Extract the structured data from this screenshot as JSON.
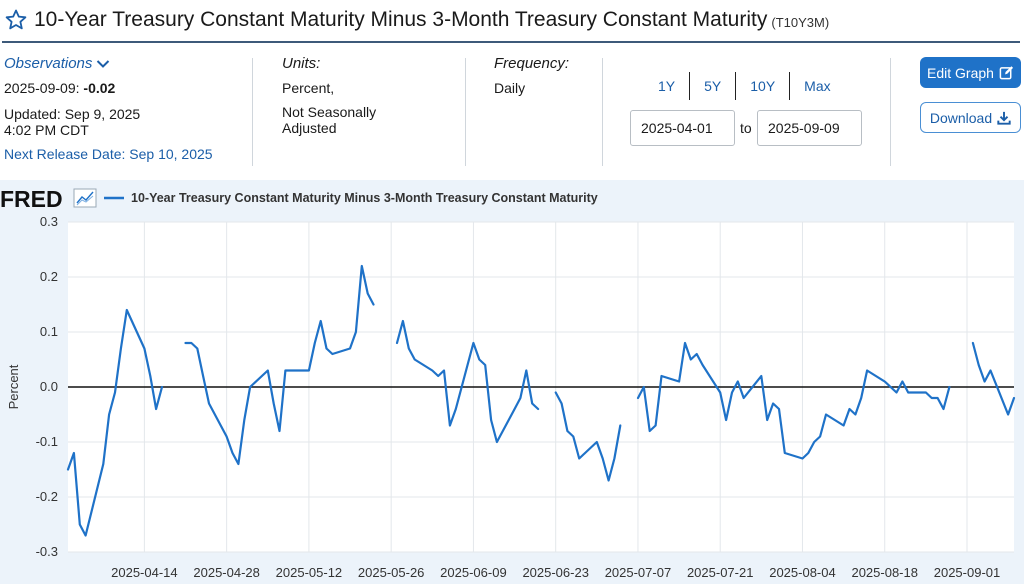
{
  "header": {
    "title": "10-Year Treasury Constant Maturity Minus 3-Month Treasury Constant Maturity",
    "series_code": "(T10Y3M)",
    "star_icon": "star-outline-icon"
  },
  "meta": {
    "observations_label": "Observations",
    "obs_date": "2025-09-09:",
    "obs_value": "-0.02",
    "updated_line1": "Updated: Sep 9, 2025",
    "updated_line2": "4:02 PM CDT",
    "next_release": "Next Release Date: Sep 10, 2025",
    "units_label": "Units:",
    "units_line1": "Percent,",
    "units_line2": "Not Seasonally",
    "units_line3": "Adjusted",
    "frequency_label": "Frequency:",
    "frequency_value": "Daily"
  },
  "controls": {
    "ranges": [
      "1Y",
      "5Y",
      "10Y",
      "Max"
    ],
    "start_date": "2025-04-01",
    "to_label": "to",
    "end_date": "2025-09-09",
    "edit_graph_label": "Edit Graph",
    "download_label": "Download"
  },
  "chart_data": {
    "type": "line",
    "brand": "FRED",
    "legend": "10-Year Treasury Constant Maturity Minus 3-Month Treasury Constant Maturity",
    "ylabel": "Percent",
    "ylim": [
      -0.3,
      0.3
    ],
    "yticks": [
      "0.3",
      "0.2",
      "0.1",
      "0.0",
      "-0.1",
      "-0.2",
      "-0.3"
    ],
    "xticks": [
      "2025-04-14",
      "2025-04-28",
      "2025-05-12",
      "2025-05-26",
      "2025-06-09",
      "2025-06-23",
      "2025-07-07",
      "2025-07-21",
      "2025-08-04",
      "2025-08-18",
      "2025-09-01"
    ],
    "xlim": [
      "2025-04-01",
      "2025-09-09"
    ],
    "grid": true,
    "zero_line": true,
    "color": "#1f72c8",
    "segments": [
      [
        [
          "2025-04-01",
          -0.15
        ],
        [
          "2025-04-02",
          -0.12
        ],
        [
          "2025-04-03",
          -0.25
        ],
        [
          "2025-04-04",
          -0.27
        ],
        [
          "2025-04-07",
          -0.14
        ],
        [
          "2025-04-08",
          -0.05
        ],
        [
          "2025-04-09",
          -0.01
        ],
        [
          "2025-04-10",
          0.07
        ],
        [
          "2025-04-11",
          0.14
        ],
        [
          "2025-04-14",
          0.07
        ],
        [
          "2025-04-15",
          0.02
        ],
        [
          "2025-04-16",
          -0.04
        ],
        [
          "2025-04-17",
          -0.0
        ]
      ],
      [
        [
          "2025-04-21",
          0.08
        ],
        [
          "2025-04-22",
          0.08
        ],
        [
          "2025-04-23",
          0.07
        ],
        [
          "2025-04-24",
          0.02
        ],
        [
          "2025-04-25",
          -0.03
        ],
        [
          "2025-04-28",
          -0.09
        ],
        [
          "2025-04-29",
          -0.12
        ],
        [
          "2025-04-30",
          -0.14
        ],
        [
          "2025-05-01",
          -0.06
        ],
        [
          "2025-05-02",
          0.0
        ],
        [
          "2025-05-05",
          0.03
        ],
        [
          "2025-05-06",
          -0.03
        ],
        [
          "2025-05-07",
          -0.08
        ],
        [
          "2025-05-08",
          0.03
        ],
        [
          "2025-05-09",
          0.03
        ],
        [
          "2025-05-12",
          0.03
        ],
        [
          "2025-05-13",
          0.08
        ],
        [
          "2025-05-14",
          0.12
        ],
        [
          "2025-05-15",
          0.07
        ],
        [
          "2025-05-16",
          0.06
        ],
        [
          "2025-05-19",
          0.07
        ],
        [
          "2025-05-20",
          0.1
        ],
        [
          "2025-05-21",
          0.22
        ],
        [
          "2025-05-22",
          0.17
        ],
        [
          "2025-05-23",
          0.15
        ]
      ],
      [
        [
          "2025-05-27",
          0.08
        ],
        [
          "2025-05-28",
          0.12
        ],
        [
          "2025-05-29",
          0.07
        ],
        [
          "2025-05-30",
          0.05
        ],
        [
          "2025-06-02",
          0.03
        ],
        [
          "2025-06-03",
          0.02
        ],
        [
          "2025-06-04",
          0.03
        ],
        [
          "2025-06-05",
          -0.07
        ],
        [
          "2025-06-06",
          -0.04
        ],
        [
          "2025-06-09",
          0.08
        ],
        [
          "2025-06-10",
          0.05
        ],
        [
          "2025-06-11",
          0.04
        ],
        [
          "2025-06-12",
          -0.06
        ],
        [
          "2025-06-13",
          -0.1
        ],
        [
          "2025-06-16",
          -0.04
        ],
        [
          "2025-06-17",
          -0.02
        ],
        [
          "2025-06-18",
          0.03
        ],
        [
          "2025-06-19",
          -0.03
        ],
        [
          "2025-06-20",
          -0.04
        ]
      ],
      [
        [
          "2025-06-23",
          -0.01
        ],
        [
          "2025-06-24",
          -0.03
        ],
        [
          "2025-06-25",
          -0.08
        ],
        [
          "2025-06-26",
          -0.09
        ],
        [
          "2025-06-27",
          -0.13
        ],
        [
          "2025-06-30",
          -0.1
        ],
        [
          "2025-07-01",
          -0.13
        ],
        [
          "2025-07-02",
          -0.17
        ],
        [
          "2025-07-03",
          -0.13
        ],
        [
          "2025-07-04",
          -0.07
        ]
      ],
      [
        [
          "2025-07-07",
          -0.02
        ],
        [
          "2025-07-08",
          0.0
        ],
        [
          "2025-07-09",
          -0.08
        ],
        [
          "2025-07-10",
          -0.07
        ],
        [
          "2025-07-11",
          0.02
        ],
        [
          "2025-07-14",
          0.01
        ],
        [
          "2025-07-15",
          0.08
        ],
        [
          "2025-07-16",
          0.05
        ],
        [
          "2025-07-17",
          0.06
        ],
        [
          "2025-07-18",
          0.04
        ],
        [
          "2025-07-21",
          -0.01
        ],
        [
          "2025-07-22",
          -0.06
        ],
        [
          "2025-07-23",
          -0.01
        ],
        [
          "2025-07-24",
          0.01
        ],
        [
          "2025-07-25",
          -0.02
        ],
        [
          "2025-07-28",
          0.02
        ],
        [
          "2025-07-29",
          -0.06
        ],
        [
          "2025-07-30",
          -0.03
        ],
        [
          "2025-07-31",
          -0.04
        ],
        [
          "2025-08-01",
          -0.12
        ],
        [
          "2025-08-04",
          -0.13
        ],
        [
          "2025-08-05",
          -0.12
        ],
        [
          "2025-08-06",
          -0.1
        ],
        [
          "2025-08-07",
          -0.09
        ],
        [
          "2025-08-08",
          -0.05
        ],
        [
          "2025-08-11",
          -0.07
        ],
        [
          "2025-08-12",
          -0.04
        ],
        [
          "2025-08-13",
          -0.05
        ],
        [
          "2025-08-14",
          -0.02
        ],
        [
          "2025-08-15",
          0.03
        ],
        [
          "2025-08-18",
          0.01
        ],
        [
          "2025-08-19",
          0.0
        ],
        [
          "2025-08-20",
          -0.01
        ],
        [
          "2025-08-21",
          0.01
        ],
        [
          "2025-08-22",
          -0.01
        ],
        [
          "2025-08-25",
          -0.01
        ],
        [
          "2025-08-26",
          -0.02
        ],
        [
          "2025-08-27",
          -0.02
        ],
        [
          "2025-08-28",
          -0.04
        ],
        [
          "2025-08-29",
          0.0
        ]
      ],
      [
        [
          "2025-09-02",
          0.08
        ],
        [
          "2025-09-03",
          0.04
        ],
        [
          "2025-09-04",
          0.01
        ],
        [
          "2025-09-05",
          0.03
        ],
        [
          "2025-09-08",
          -0.05
        ],
        [
          "2025-09-09",
          -0.02
        ]
      ]
    ]
  }
}
